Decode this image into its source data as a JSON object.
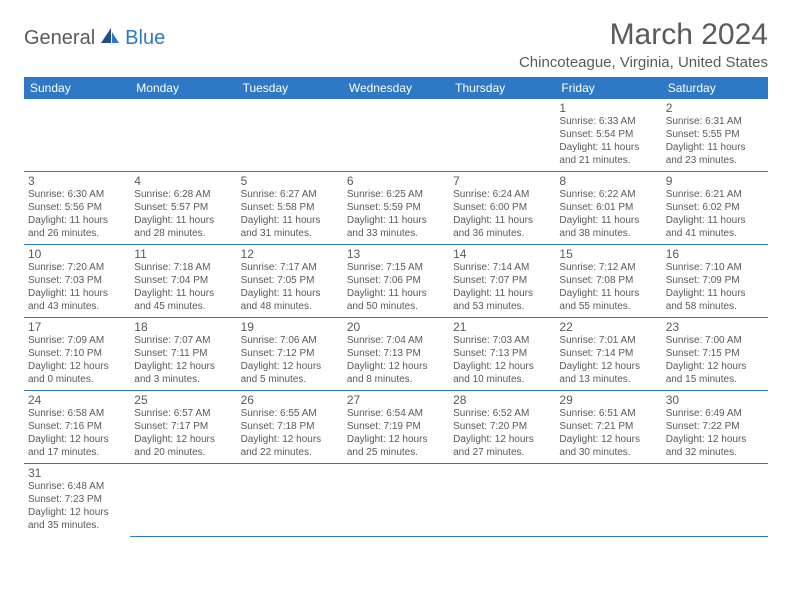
{
  "logo": {
    "general": "General",
    "blue": "Blue"
  },
  "title": "March 2024",
  "location": "Chincoteague, Virginia, United States",
  "colors": {
    "header_bg": "#2f78c4",
    "text": "#5a5a5a",
    "border": "#2f78c4"
  },
  "dayHeaders": [
    "Sunday",
    "Monday",
    "Tuesday",
    "Wednesday",
    "Thursday",
    "Friday",
    "Saturday"
  ],
  "weeks": [
    [
      null,
      null,
      null,
      null,
      null,
      {
        "n": "1",
        "sr": "Sunrise: 6:33 AM",
        "ss": "Sunset: 5:54 PM",
        "dl1": "Daylight: 11 hours",
        "dl2": "and 21 minutes."
      },
      {
        "n": "2",
        "sr": "Sunrise: 6:31 AM",
        "ss": "Sunset: 5:55 PM",
        "dl1": "Daylight: 11 hours",
        "dl2": "and 23 minutes."
      }
    ],
    [
      {
        "n": "3",
        "sr": "Sunrise: 6:30 AM",
        "ss": "Sunset: 5:56 PM",
        "dl1": "Daylight: 11 hours",
        "dl2": "and 26 minutes."
      },
      {
        "n": "4",
        "sr": "Sunrise: 6:28 AM",
        "ss": "Sunset: 5:57 PM",
        "dl1": "Daylight: 11 hours",
        "dl2": "and 28 minutes."
      },
      {
        "n": "5",
        "sr": "Sunrise: 6:27 AM",
        "ss": "Sunset: 5:58 PM",
        "dl1": "Daylight: 11 hours",
        "dl2": "and 31 minutes."
      },
      {
        "n": "6",
        "sr": "Sunrise: 6:25 AM",
        "ss": "Sunset: 5:59 PM",
        "dl1": "Daylight: 11 hours",
        "dl2": "and 33 minutes."
      },
      {
        "n": "7",
        "sr": "Sunrise: 6:24 AM",
        "ss": "Sunset: 6:00 PM",
        "dl1": "Daylight: 11 hours",
        "dl2": "and 36 minutes."
      },
      {
        "n": "8",
        "sr": "Sunrise: 6:22 AM",
        "ss": "Sunset: 6:01 PM",
        "dl1": "Daylight: 11 hours",
        "dl2": "and 38 minutes."
      },
      {
        "n": "9",
        "sr": "Sunrise: 6:21 AM",
        "ss": "Sunset: 6:02 PM",
        "dl1": "Daylight: 11 hours",
        "dl2": "and 41 minutes."
      }
    ],
    [
      {
        "n": "10",
        "sr": "Sunrise: 7:20 AM",
        "ss": "Sunset: 7:03 PM",
        "dl1": "Daylight: 11 hours",
        "dl2": "and 43 minutes."
      },
      {
        "n": "11",
        "sr": "Sunrise: 7:18 AM",
        "ss": "Sunset: 7:04 PM",
        "dl1": "Daylight: 11 hours",
        "dl2": "and 45 minutes."
      },
      {
        "n": "12",
        "sr": "Sunrise: 7:17 AM",
        "ss": "Sunset: 7:05 PM",
        "dl1": "Daylight: 11 hours",
        "dl2": "and 48 minutes."
      },
      {
        "n": "13",
        "sr": "Sunrise: 7:15 AM",
        "ss": "Sunset: 7:06 PM",
        "dl1": "Daylight: 11 hours",
        "dl2": "and 50 minutes."
      },
      {
        "n": "14",
        "sr": "Sunrise: 7:14 AM",
        "ss": "Sunset: 7:07 PM",
        "dl1": "Daylight: 11 hours",
        "dl2": "and 53 minutes."
      },
      {
        "n": "15",
        "sr": "Sunrise: 7:12 AM",
        "ss": "Sunset: 7:08 PM",
        "dl1": "Daylight: 11 hours",
        "dl2": "and 55 minutes."
      },
      {
        "n": "16",
        "sr": "Sunrise: 7:10 AM",
        "ss": "Sunset: 7:09 PM",
        "dl1": "Daylight: 11 hours",
        "dl2": "and 58 minutes."
      }
    ],
    [
      {
        "n": "17",
        "sr": "Sunrise: 7:09 AM",
        "ss": "Sunset: 7:10 PM",
        "dl1": "Daylight: 12 hours",
        "dl2": "and 0 minutes."
      },
      {
        "n": "18",
        "sr": "Sunrise: 7:07 AM",
        "ss": "Sunset: 7:11 PM",
        "dl1": "Daylight: 12 hours",
        "dl2": "and 3 minutes."
      },
      {
        "n": "19",
        "sr": "Sunrise: 7:06 AM",
        "ss": "Sunset: 7:12 PM",
        "dl1": "Daylight: 12 hours",
        "dl2": "and 5 minutes."
      },
      {
        "n": "20",
        "sr": "Sunrise: 7:04 AM",
        "ss": "Sunset: 7:13 PM",
        "dl1": "Daylight: 12 hours",
        "dl2": "and 8 minutes."
      },
      {
        "n": "21",
        "sr": "Sunrise: 7:03 AM",
        "ss": "Sunset: 7:13 PM",
        "dl1": "Daylight: 12 hours",
        "dl2": "and 10 minutes."
      },
      {
        "n": "22",
        "sr": "Sunrise: 7:01 AM",
        "ss": "Sunset: 7:14 PM",
        "dl1": "Daylight: 12 hours",
        "dl2": "and 13 minutes."
      },
      {
        "n": "23",
        "sr": "Sunrise: 7:00 AM",
        "ss": "Sunset: 7:15 PM",
        "dl1": "Daylight: 12 hours",
        "dl2": "and 15 minutes."
      }
    ],
    [
      {
        "n": "24",
        "sr": "Sunrise: 6:58 AM",
        "ss": "Sunset: 7:16 PM",
        "dl1": "Daylight: 12 hours",
        "dl2": "and 17 minutes."
      },
      {
        "n": "25",
        "sr": "Sunrise: 6:57 AM",
        "ss": "Sunset: 7:17 PM",
        "dl1": "Daylight: 12 hours",
        "dl2": "and 20 minutes."
      },
      {
        "n": "26",
        "sr": "Sunrise: 6:55 AM",
        "ss": "Sunset: 7:18 PM",
        "dl1": "Daylight: 12 hours",
        "dl2": "and 22 minutes."
      },
      {
        "n": "27",
        "sr": "Sunrise: 6:54 AM",
        "ss": "Sunset: 7:19 PM",
        "dl1": "Daylight: 12 hours",
        "dl2": "and 25 minutes."
      },
      {
        "n": "28",
        "sr": "Sunrise: 6:52 AM",
        "ss": "Sunset: 7:20 PM",
        "dl1": "Daylight: 12 hours",
        "dl2": "and 27 minutes."
      },
      {
        "n": "29",
        "sr": "Sunrise: 6:51 AM",
        "ss": "Sunset: 7:21 PM",
        "dl1": "Daylight: 12 hours",
        "dl2": "and 30 minutes."
      },
      {
        "n": "30",
        "sr": "Sunrise: 6:49 AM",
        "ss": "Sunset: 7:22 PM",
        "dl1": "Daylight: 12 hours",
        "dl2": "and 32 minutes."
      }
    ],
    [
      {
        "n": "31",
        "sr": "Sunrise: 6:48 AM",
        "ss": "Sunset: 7:23 PM",
        "dl1": "Daylight: 12 hours",
        "dl2": "and 35 minutes."
      },
      null,
      null,
      null,
      null,
      null,
      null
    ]
  ]
}
